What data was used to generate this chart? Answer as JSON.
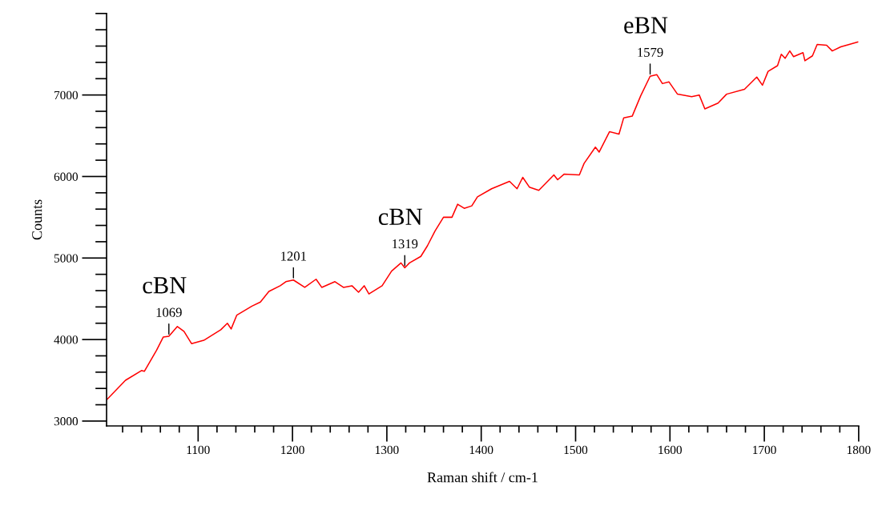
{
  "chart_data": {
    "type": "line",
    "xlabel": "Raman shift / cm-1",
    "ylabel": "Counts",
    "xlim": [
      1003,
      1800
    ],
    "xticks": [
      1100,
      1200,
      1300,
      1400,
      1500,
      1600,
      1700,
      1800
    ],
    "ylim": [
      2940,
      8000
    ],
    "yticks": [
      3000,
      4000,
      5000,
      6000,
      7000
    ],
    "grid": false,
    "marker": "none",
    "line_style": "solid",
    "annotations": [
      "cBN",
      {
        "text": "1069",
        "x": 1069,
        "y": 4040
      },
      {
        "text": "1201",
        "x": 1201,
        "y": 4730
      },
      "cBN",
      {
        "text": "1319",
        "x": 1319,
        "y": 4880
      },
      "eBN",
      {
        "text": "1579",
        "x": 1579,
        "y": 7230
      }
    ],
    "series": [
      {
        "color": "#ff0000",
        "x": [
          1003,
          1023,
          1040,
          1043,
          1056,
          1063,
          1069,
          1078,
          1085,
          1093,
          1106,
          1124,
          1131,
          1135,
          1141,
          1157,
          1166,
          1175,
          1187,
          1193,
          1201,
          1213,
          1225,
          1231,
          1245,
          1254,
          1263,
          1270,
          1276,
          1281,
          1295,
          1305,
          1315,
          1319,
          1324,
          1336,
          1343,
          1351,
          1360,
          1369,
          1375,
          1382,
          1390,
          1396,
          1411,
          1430,
          1438,
          1444,
          1451,
          1461,
          1477,
          1481,
          1488,
          1504,
          1509,
          1521,
          1525,
          1536,
          1546,
          1551,
          1560,
          1569,
          1579,
          1586,
          1592,
          1599,
          1608,
          1623,
          1631,
          1637,
          1651,
          1660,
          1679,
          1692,
          1698,
          1704,
          1714,
          1718,
          1722,
          1727,
          1731,
          1741,
          1743,
          1751,
          1756,
          1766,
          1772,
          1781,
          1790,
          1799
        ],
        "values": [
          3260,
          3500,
          3620,
          3610,
          3870,
          4030,
          4040,
          4160,
          4100,
          3950,
          3990,
          4120,
          4200,
          4130,
          4300,
          4410,
          4460,
          4590,
          4660,
          4710,
          4730,
          4640,
          4740,
          4640,
          4710,
          4640,
          4660,
          4580,
          4660,
          4560,
          4660,
          4840,
          4940,
          4880,
          4940,
          5020,
          5150,
          5330,
          5500,
          5500,
          5660,
          5610,
          5640,
          5750,
          5850,
          5940,
          5850,
          5990,
          5870,
          5830,
          6020,
          5960,
          6030,
          6020,
          6160,
          6360,
          6300,
          6550,
          6520,
          6720,
          6740,
          6990,
          7230,
          7250,
          7140,
          7160,
          7010,
          6980,
          7000,
          6830,
          6900,
          7010,
          7070,
          7220,
          7120,
          7290,
          7360,
          7500,
          7450,
          7540,
          7470,
          7520,
          7420,
          7480,
          7620,
          7610,
          7540,
          7590,
          7620,
          7650
        ]
      }
    ]
  }
}
